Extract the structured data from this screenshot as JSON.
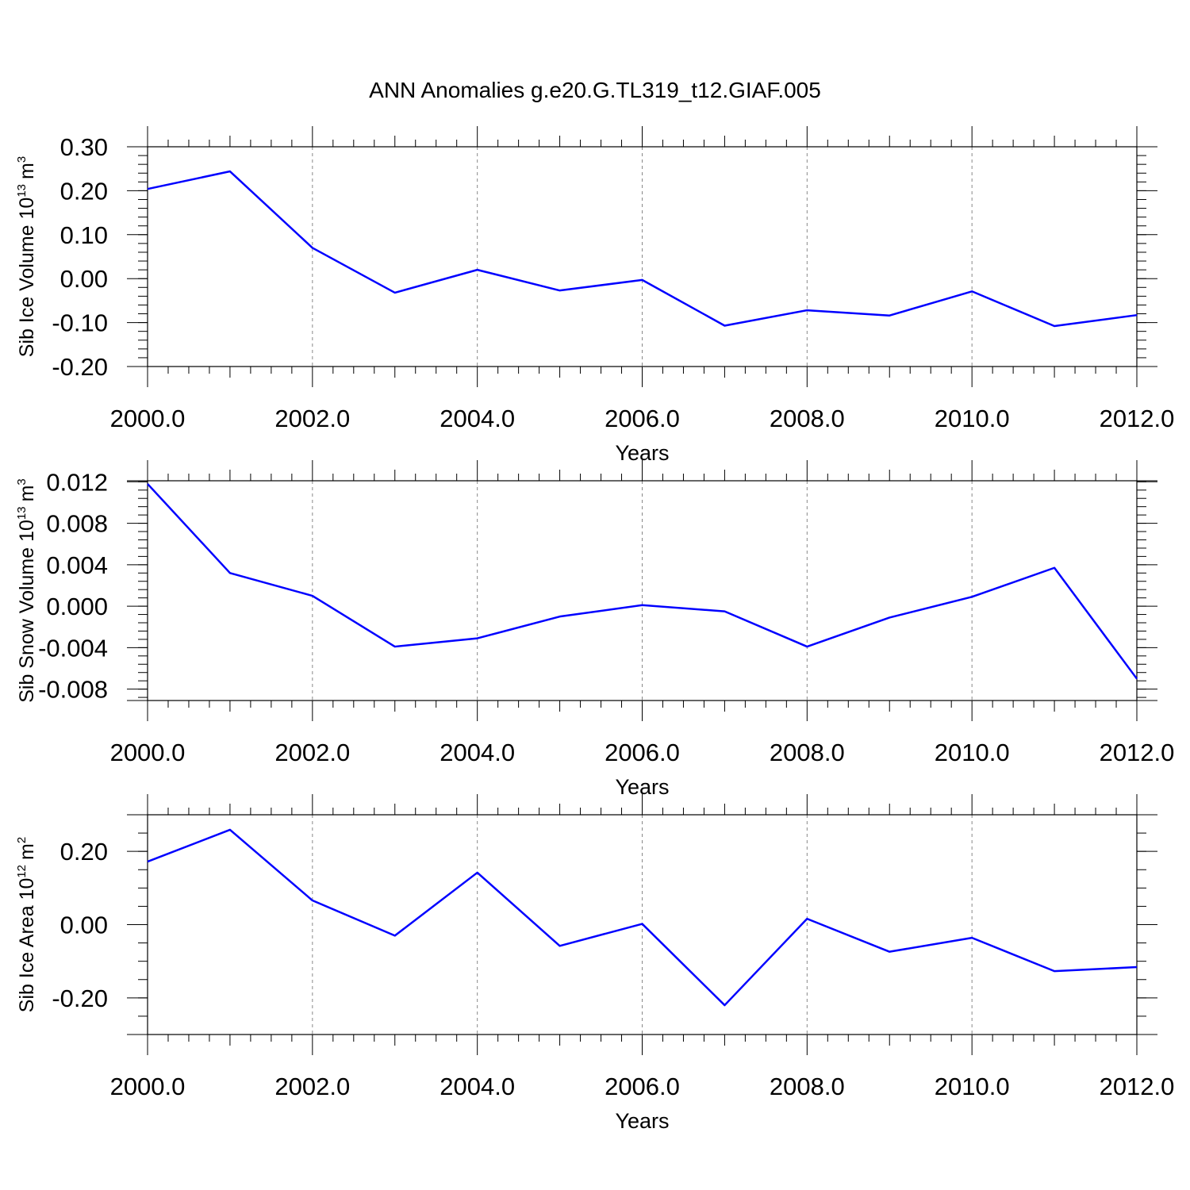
{
  "figure": {
    "title": "ANN Anomalies g.e20.G.TL319_t12.GIAF.005"
  },
  "colors": {
    "series": "#0000ff",
    "axis": "#000000",
    "grid": "#888888"
  },
  "chart_data": [
    {
      "type": "line",
      "title": "",
      "xlabel": "Years",
      "ylabel": "Sib Ice Volume 10^13 m^3",
      "ylabel_base": "Sib Ice Volume 10",
      "ylabel_exp": "13",
      "ylabel_unit": "m",
      "ylabel_unit_exp": "3",
      "xlim": [
        2000,
        2012
      ],
      "ylim": [
        -0.2,
        0.3
      ],
      "grid": "vertical dashed at major x ticks",
      "x_ticks": [
        2000,
        2002,
        2004,
        2006,
        2008,
        2010,
        2012
      ],
      "x_tick_labels": [
        "2000.0",
        "2002.0",
        "2004.0",
        "2006.0",
        "2008.0",
        "2010.0",
        "2012.0"
      ],
      "y_ticks": [
        -0.2,
        -0.1,
        0.0,
        0.1,
        0.2,
        0.3
      ],
      "y_tick_labels": [
        "-0.20",
        "-0.10",
        "0.00",
        "0.10",
        "0.20",
        "0.30"
      ],
      "y_minor_step": 0.02,
      "series": [
        {
          "name": "Sib Ice Volume anomaly",
          "x": [
            2000,
            2001,
            2002,
            2003,
            2004,
            2005,
            2006,
            2007,
            2008,
            2009,
            2010,
            2011,
            2012
          ],
          "y": [
            0.204,
            0.244,
            0.07,
            -0.032,
            0.02,
            -0.027,
            -0.003,
            -0.107,
            -0.072,
            -0.084,
            -0.029,
            -0.108,
            -0.083
          ]
        }
      ]
    },
    {
      "type": "line",
      "title": "",
      "xlabel": "Years",
      "ylabel": "Sib Snow Volume 10^13 m^3",
      "ylabel_base": "Sib Snow Volume 10",
      "ylabel_exp": "13",
      "ylabel_unit": "m",
      "ylabel_unit_exp": "3",
      "xlim": [
        2000,
        2012
      ],
      "ylim": [
        -0.0091,
        0.0121
      ],
      "grid": "vertical dashed at major x ticks",
      "x_ticks": [
        2000,
        2002,
        2004,
        2006,
        2008,
        2010,
        2012
      ],
      "x_tick_labels": [
        "2000.0",
        "2002.0",
        "2004.0",
        "2006.0",
        "2008.0",
        "2010.0",
        "2012.0"
      ],
      "y_ticks": [
        -0.008,
        -0.004,
        0.0,
        0.004,
        0.008,
        0.012
      ],
      "y_tick_labels": [
        "-0.008",
        "-0.004",
        "0.000",
        "0.004",
        "0.008",
        "0.012"
      ],
      "y_minor_step": 0.0008,
      "series": [
        {
          "name": "Sib Snow Volume anomaly",
          "x": [
            2000,
            2001,
            2002,
            2003,
            2004,
            2005,
            2006,
            2007,
            2008,
            2009,
            2010,
            2011,
            2012
          ],
          "y": [
            0.0118,
            0.0032,
            0.001,
            -0.0039,
            -0.0031,
            -0.001,
            0.0001,
            -0.0005,
            -0.0039,
            -0.0011,
            0.0009,
            0.0037,
            -0.007
          ]
        }
      ]
    },
    {
      "type": "line",
      "title": "",
      "xlabel": "Years",
      "ylabel": "Sib Ice Area 10^12 m^2",
      "ylabel_base": "Sib Ice Area 10",
      "ylabel_exp": "12",
      "ylabel_unit": "m",
      "ylabel_unit_exp": "2",
      "xlim": [
        2000,
        2012
      ],
      "ylim": [
        -0.3,
        0.3
      ],
      "grid": "vertical dashed at major x ticks",
      "x_ticks": [
        2000,
        2002,
        2004,
        2006,
        2008,
        2010,
        2012
      ],
      "x_tick_labels": [
        "2000.0",
        "2002.0",
        "2004.0",
        "2006.0",
        "2008.0",
        "2010.0",
        "2012.0"
      ],
      "y_ticks": [
        -0.2,
        0.0,
        0.2
      ],
      "y_tick_labels": [
        "-0.20",
        "0.00",
        "0.20"
      ],
      "y_minor_step": 0.05,
      "series": [
        {
          "name": "Sib Ice Area anomaly",
          "x": [
            2000,
            2001,
            2002,
            2003,
            2004,
            2005,
            2006,
            2007,
            2008,
            2009,
            2010,
            2011,
            2012
          ],
          "y": [
            0.172,
            0.259,
            0.066,
            -0.03,
            0.142,
            -0.058,
            0.002,
            -0.22,
            0.016,
            -0.074,
            -0.036,
            -0.127,
            -0.116
          ]
        }
      ]
    }
  ]
}
